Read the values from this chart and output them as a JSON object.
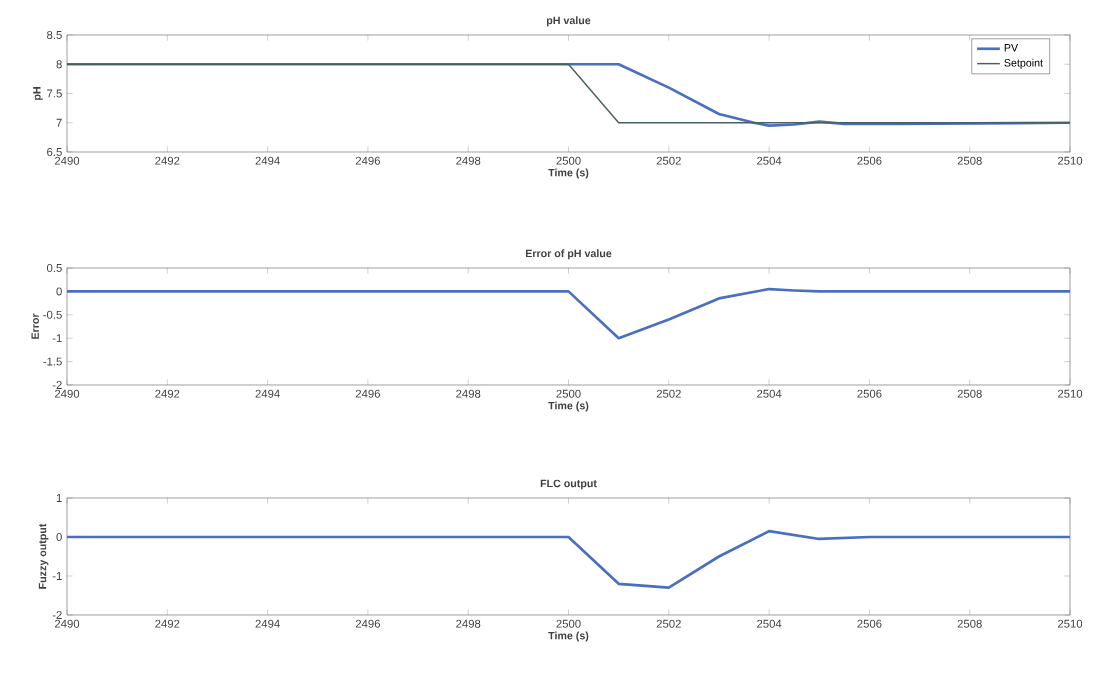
{
  "chart_data": [
    {
      "type": "line",
      "title": "pH value",
      "xlabel": "Time (s)",
      "ylabel": "pH",
      "xlim": [
        2490,
        2510
      ],
      "xticks": [
        2490,
        2492,
        2494,
        2496,
        2498,
        2500,
        2502,
        2504,
        2506,
        2508,
        2510
      ],
      "ylim": [
        6.5,
        8.5
      ],
      "yticks": [
        6.5,
        7,
        7.5,
        8,
        8.5
      ],
      "legend": "top right",
      "grid": false,
      "marker": "none",
      "line_style": "solid",
      "series": [
        {
          "name": "PV",
          "color": "#4a6fc0",
          "x": [
            2490,
            2501,
            2502,
            2503,
            2503.7,
            2504,
            2504.5,
            2505,
            2505.5,
            2506.5,
            2510
          ],
          "values": [
            8,
            8,
            7.6,
            7.15,
            7.0,
            6.95,
            6.97,
            7.02,
            6.98,
            6.98,
            7.0
          ]
        },
        {
          "name": "Setpoint",
          "color": "#4a6060",
          "x": [
            2490,
            2500,
            2501,
            2510
          ],
          "values": [
            8,
            8,
            7,
            7
          ]
        }
      ]
    },
    {
      "type": "line",
      "title": "Error of pH value",
      "xlabel": "Time (s)",
      "ylabel": "Error",
      "xlim": [
        2490,
        2510
      ],
      "xticks": [
        2490,
        2492,
        2494,
        2496,
        2498,
        2500,
        2502,
        2504,
        2506,
        2508,
        2510
      ],
      "ylim": [
        -2,
        0.5
      ],
      "yticks": [
        -2,
        -1.5,
        -1,
        -0.5,
        0,
        0.5
      ],
      "legend": false,
      "grid": false,
      "marker": "none",
      "line_style": "solid",
      "series": [
        {
          "color": "#4a6fc0",
          "x": [
            2490,
            2500,
            2501,
            2502,
            2503,
            2504,
            2504.5,
            2505,
            2510
          ],
          "values": [
            0,
            0,
            -1,
            -0.6,
            -0.15,
            0.05,
            0.02,
            0,
            0
          ]
        }
      ]
    },
    {
      "type": "line",
      "title": "FLC output",
      "xlabel": "Time (s)",
      "ylabel": "Fuzzy output",
      "xlim": [
        2490,
        2510
      ],
      "xticks": [
        2490,
        2492,
        2494,
        2496,
        2498,
        2500,
        2502,
        2504,
        2506,
        2508,
        2510
      ],
      "ylim": [
        -2,
        1
      ],
      "yticks": [
        -2,
        -1,
        0,
        1
      ],
      "legend": false,
      "grid": false,
      "marker": "none",
      "line_style": "solid",
      "series": [
        {
          "color": "#4a6fc0",
          "x": [
            2490,
            2500,
            2501,
            2502,
            2503,
            2504,
            2505,
            2506,
            2510
          ],
          "values": [
            0,
            0,
            -1.2,
            -1.3,
            -0.5,
            0.15,
            -0.05,
            0,
            0
          ]
        }
      ]
    }
  ]
}
